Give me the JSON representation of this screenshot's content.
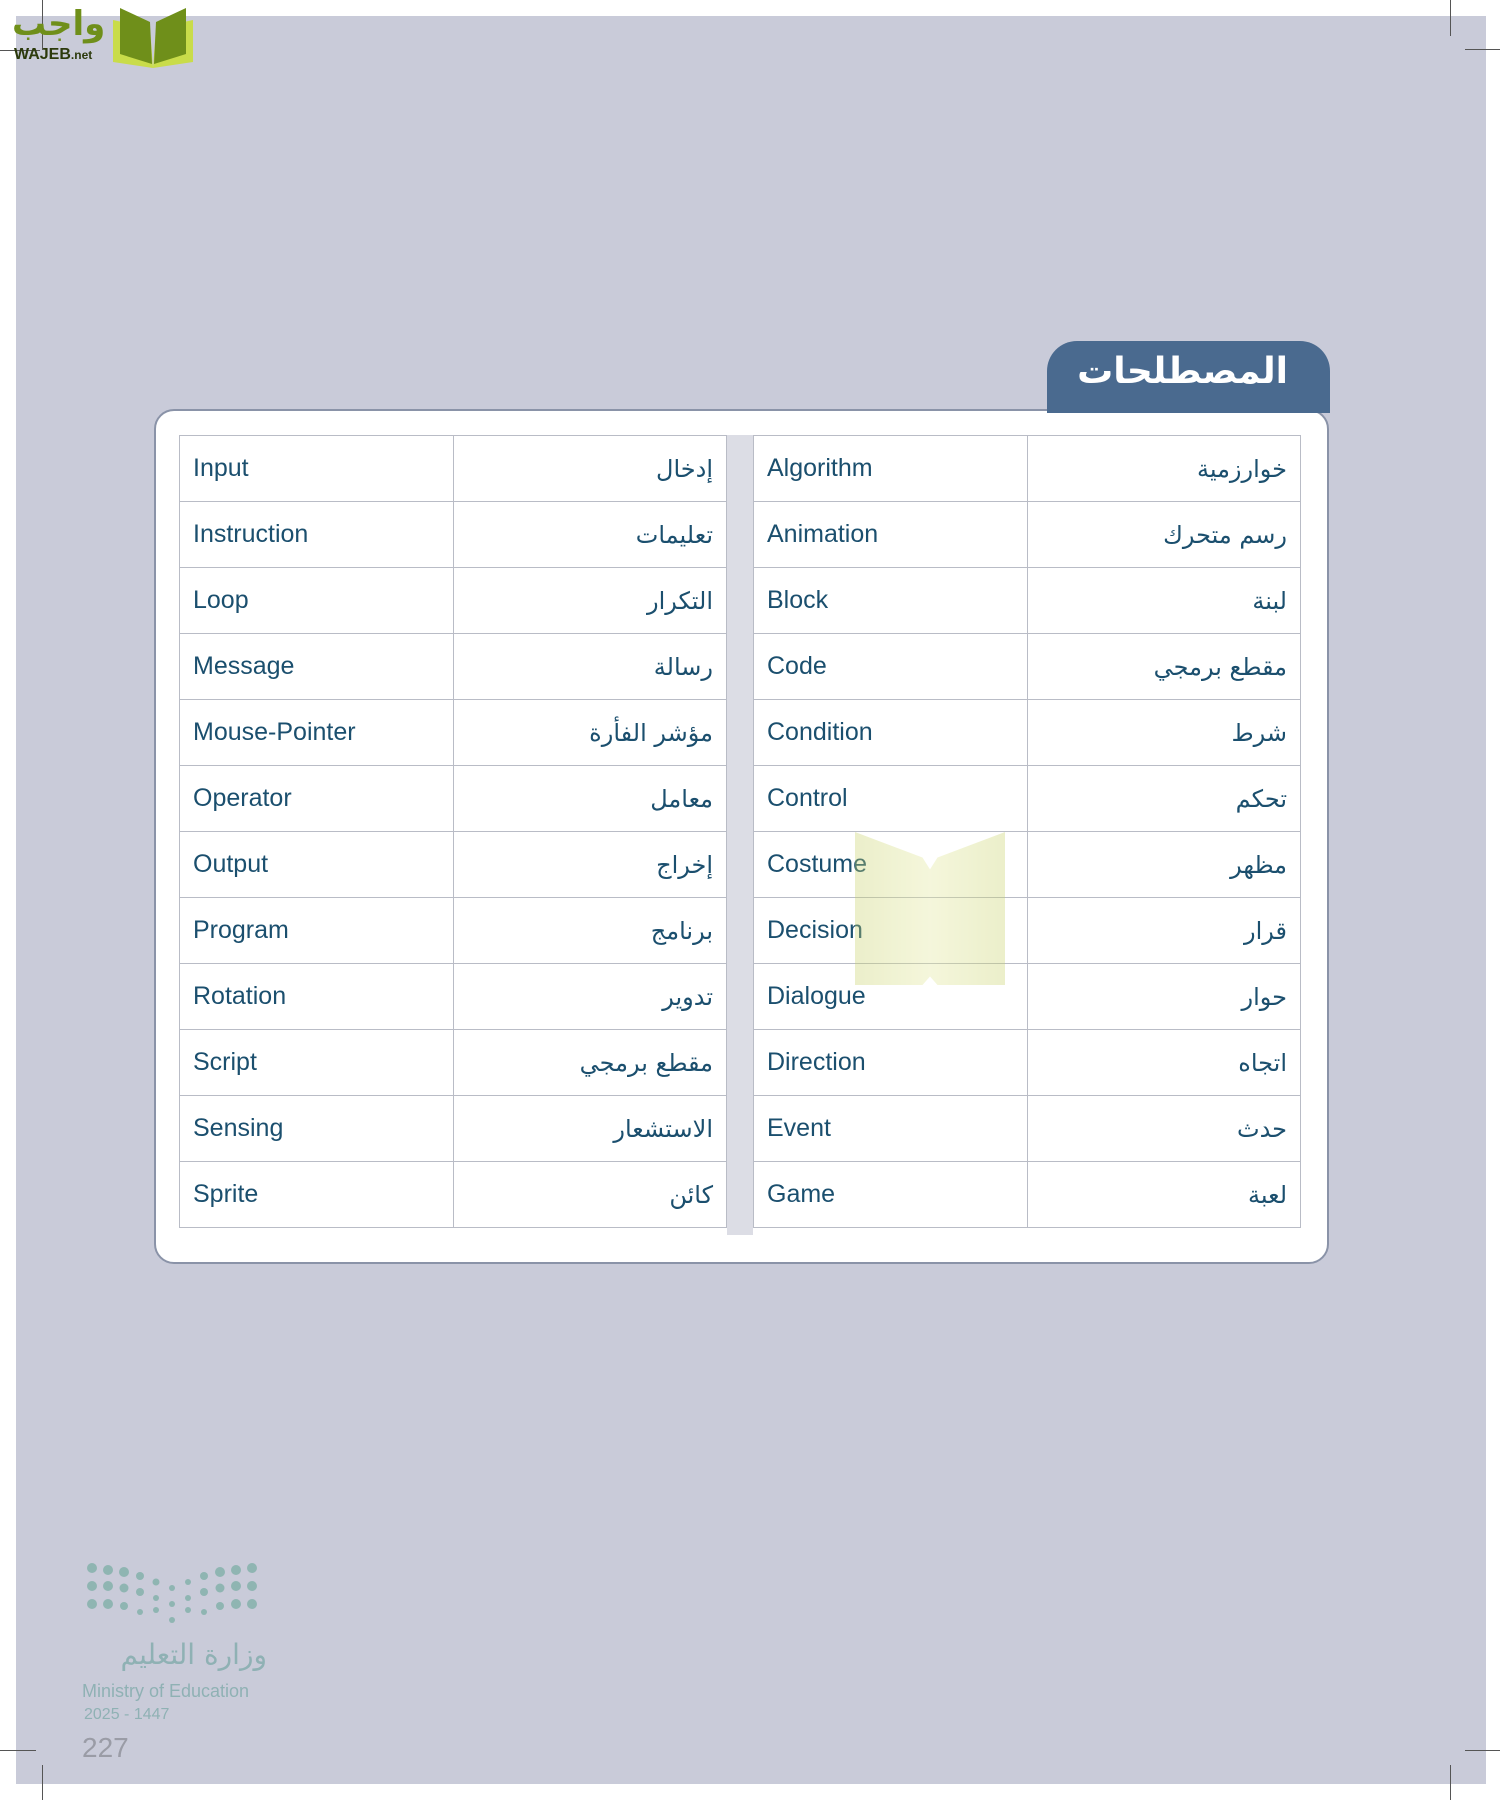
{
  "logo": {
    "arabic": "واجب",
    "latin": "WAJEB",
    "suffix": ".net"
  },
  "section_title": "المصطلحات",
  "left_table": [
    {
      "en": "Input",
      "ar": "إدخال"
    },
    {
      "en": "Instruction",
      "ar": "تعليمات"
    },
    {
      "en": "Loop",
      "ar": "التكرار"
    },
    {
      "en": "Message",
      "ar": "رسالة"
    },
    {
      "en": "Mouse-Pointer",
      "ar": "مؤشر الفأرة"
    },
    {
      "en": "Operator",
      "ar": "معامل"
    },
    {
      "en": "Output",
      "ar": "إخراج"
    },
    {
      "en": "Program",
      "ar": "برنامج"
    },
    {
      "en": "Rotation",
      "ar": "تدوير"
    },
    {
      "en": "Script",
      "ar": "مقطع برمجي"
    },
    {
      "en": "Sensing",
      "ar": "الاستشعار"
    },
    {
      "en": "Sprite",
      "ar": "كائن"
    }
  ],
  "right_table": [
    {
      "en": "Algorithm",
      "ar": "خوارزمية"
    },
    {
      "en": "Animation",
      "ar": "رسم متحرك"
    },
    {
      "en": "Block",
      "ar": "لبنة"
    },
    {
      "en": "Code",
      "ar": "مقطع برمجي"
    },
    {
      "en": "Condition",
      "ar": "شرط"
    },
    {
      "en": "Control",
      "ar": "تحكم"
    },
    {
      "en": "Costume",
      "ar": "مظهر"
    },
    {
      "en": "Decision",
      "ar": "قرار"
    },
    {
      "en": "Dialogue",
      "ar": "حوار"
    },
    {
      "en": "Direction",
      "ar": "اتجاه"
    },
    {
      "en": "Event",
      "ar": "حدث"
    },
    {
      "en": "Game",
      "ar": "لعبة"
    }
  ],
  "watermark": {
    "arabic": "واجب",
    "latin": "WAJEB.net"
  },
  "footer": {
    "ministry_ar": "وزارة التعليم",
    "ministry_en": "Ministry of Education",
    "year": "2025 - 1447",
    "page_number": "227"
  },
  "colors": {
    "accent": "#4a6a8f",
    "text": "#1b4f6e",
    "page_bg": "#c9cbd9"
  }
}
